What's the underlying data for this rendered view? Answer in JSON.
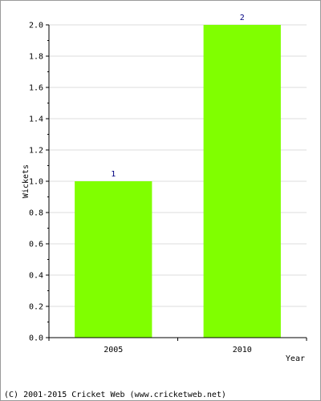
{
  "chart_data": {
    "type": "bar",
    "categories": [
      "2005",
      "2010"
    ],
    "values": [
      1,
      2
    ],
    "data_labels": [
      "1",
      "2"
    ],
    "title": "",
    "xlabel": "Year",
    "ylabel": "Wickets",
    "ylim": [
      0,
      2
    ],
    "yticks": [
      "0.0",
      "0.2",
      "0.4",
      "0.6",
      "0.8",
      "1.0",
      "1.2",
      "1.4",
      "1.6",
      "1.8",
      "2.0"
    ],
    "grid": true,
    "bar_color": "#80ff00",
    "label_color": "#000080"
  },
  "footer": {
    "copyright": "(C) 2001-2015 Cricket Web (www.cricketweb.net)"
  }
}
